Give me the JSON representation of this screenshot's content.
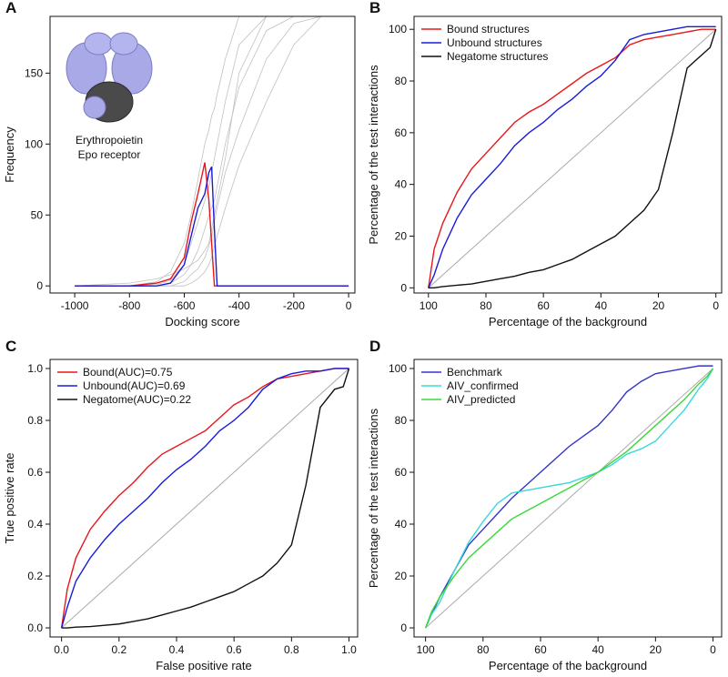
{
  "chart_data": [
    {
      "type": "line",
      "panel": "A",
      "xlabel": "Docking score",
      "ylabel": "Frequency",
      "annotations": [
        "Erythropoietin",
        "Epo receptor"
      ],
      "x": [
        -1000,
        -800,
        -700,
        -650,
        -600,
        -575,
        -550,
        -525,
        -510,
        -500,
        -490,
        -480,
        -450,
        -400,
        -300,
        -200,
        -100,
        0
      ],
      "series": [
        {
          "color": "#c0c0c0",
          "values": [
            0,
            2,
            5,
            8,
            12,
            15,
            18,
            25,
            30,
            40,
            50,
            60,
            90,
            150,
            190,
            190,
            190,
            190
          ]
        },
        {
          "color": "#c0c0c0",
          "values": [
            0,
            0,
            3,
            10,
            30,
            50,
            75,
            100,
            110,
            120,
            125,
            135,
            160,
            190,
            190,
            190,
            190,
            190
          ]
        },
        {
          "color": "#c0c0c0",
          "values": [
            0,
            0,
            1,
            4,
            15,
            30,
            45,
            60,
            70,
            80,
            90,
            100,
            130,
            170,
            190,
            190,
            190,
            190
          ]
        },
        {
          "color": "#c0c0c0",
          "values": [
            0,
            0,
            0,
            2,
            8,
            15,
            25,
            40,
            50,
            55,
            60,
            70,
            100,
            140,
            180,
            190,
            190,
            190
          ]
        },
        {
          "color": "#c0c0c0",
          "values": [
            0,
            0,
            0,
            0,
            3,
            8,
            12,
            20,
            28,
            35,
            45,
            55,
            80,
            110,
            160,
            185,
            190,
            190
          ]
        },
        {
          "color": "#c0c0c0",
          "values": [
            0,
            0,
            0,
            0,
            0,
            2,
            5,
            10,
            15,
            20,
            28,
            35,
            55,
            85,
            130,
            170,
            190,
            190
          ]
        },
        {
          "color": "#e8161b",
          "values": [
            0,
            0,
            2,
            5,
            20,
            45,
            65,
            87,
            60,
            30,
            0,
            0,
            0,
            0,
            0,
            0,
            0,
            0
          ]
        },
        {
          "color": "#1a1adb",
          "values": [
            0,
            0,
            0,
            2,
            15,
            35,
            55,
            65,
            80,
            84,
            40,
            0,
            0,
            0,
            0,
            0,
            0,
            0
          ]
        }
      ],
      "xlim": [
        -1090,
        23
      ],
      "ylim": [
        -5,
        190
      ],
      "xticks": [
        -1000,
        -800,
        -600,
        -400,
        -200,
        0
      ],
      "yticks": [
        0,
        50,
        100,
        150
      ]
    },
    {
      "type": "line",
      "panel": "B",
      "xlabel": "Percentage of the background",
      "ylabel": "Percentage of the test interactions",
      "diagonal": true,
      "legend": "top-left",
      "x": [
        100,
        98,
        95,
        90,
        85,
        80,
        75,
        70,
        65,
        60,
        55,
        50,
        45,
        40,
        35,
        30,
        25,
        20,
        15,
        10,
        5,
        2,
        0
      ],
      "series": [
        {
          "name": "Bound structures",
          "color": "#e8161b",
          "values": [
            0,
            15,
            25,
            37,
            46,
            52,
            58,
            64,
            68,
            71,
            75,
            79,
            83,
            86,
            89,
            94,
            96,
            97,
            98,
            99,
            100,
            100,
            100
          ]
        },
        {
          "name": "Unbound structures",
          "color": "#1a1adb",
          "values": [
            0,
            5,
            15,
            27,
            36,
            42,
            48,
            55,
            60,
            64,
            69,
            73,
            78,
            82,
            88,
            96,
            98,
            99,
            100,
            101,
            101,
            101,
            101
          ]
        },
        {
          "name": "Negatome structures",
          "color": "#111111",
          "values": [
            0,
            0,
            0.5,
            1,
            1.5,
            2.5,
            3.5,
            4.5,
            6,
            7,
            9,
            11,
            14,
            17,
            20,
            25,
            30,
            38,
            60,
            85,
            90,
            93,
            100
          ]
        }
      ],
      "xlim": [
        105,
        -2
      ],
      "ylim": [
        -2,
        105
      ],
      "xticks": [
        100,
        80,
        60,
        40,
        20,
        0
      ],
      "yticks": [
        0,
        20,
        40,
        60,
        80,
        100
      ]
    },
    {
      "type": "line",
      "panel": "C",
      "xlabel": "False positive rate",
      "ylabel": "True positive rate",
      "diagonal": true,
      "legend": "top-left",
      "x": [
        0,
        0.02,
        0.05,
        0.1,
        0.15,
        0.2,
        0.25,
        0.3,
        0.35,
        0.4,
        0.45,
        0.5,
        0.55,
        0.6,
        0.65,
        0.7,
        0.75,
        0.8,
        0.85,
        0.9,
        0.95,
        0.98,
        1
      ],
      "series": [
        {
          "name": "Bound(AUC)=0.75",
          "color": "#e8161b",
          "values": [
            0,
            0.15,
            0.27,
            0.38,
            0.45,
            0.51,
            0.56,
            0.62,
            0.67,
            0.7,
            0.73,
            0.76,
            0.81,
            0.86,
            0.89,
            0.93,
            0.96,
            0.97,
            0.98,
            0.99,
            1,
            1,
            1
          ]
        },
        {
          "name": "Unbound(AUC)=0.69",
          "color": "#1a1adb",
          "values": [
            0,
            0.08,
            0.18,
            0.27,
            0.34,
            0.4,
            0.45,
            0.5,
            0.56,
            0.61,
            0.65,
            0.7,
            0.76,
            0.8,
            0.85,
            0.92,
            0.96,
            0.98,
            0.99,
            0.99,
            1,
            1,
            1
          ]
        },
        {
          "name": "Negatome(AUC)=0.22",
          "color": "#111111",
          "values": [
            0,
            0,
            0.003,
            0.005,
            0.01,
            0.015,
            0.025,
            0.035,
            0.05,
            0.065,
            0.08,
            0.1,
            0.12,
            0.14,
            0.17,
            0.2,
            0.25,
            0.32,
            0.55,
            0.85,
            0.92,
            0.93,
            1
          ]
        }
      ],
      "xlim": [
        -0.04,
        1.03
      ],
      "ylim": [
        -0.035,
        1.035
      ],
      "xticks": [
        {
          "value": 0,
          "label": "0.0"
        },
        0.2,
        0.4,
        0.6,
        0.8,
        {
          "value": 1,
          "label": "1.0"
        }
      ],
      "yticks": [
        {
          "value": 0,
          "label": "0.0"
        },
        0.2,
        0.4,
        0.6,
        0.8,
        {
          "value": 1,
          "label": "1.0"
        }
      ]
    },
    {
      "type": "line",
      "panel": "D",
      "xlabel": "Percentage of the background",
      "ylabel": "Percentage of the test interactions",
      "diagonal": true,
      "legend": "top-left",
      "x": [
        100,
        98,
        95,
        90,
        85,
        80,
        75,
        70,
        65,
        60,
        55,
        50,
        45,
        40,
        35,
        30,
        25,
        20,
        15,
        10,
        5,
        2,
        0
      ],
      "series": [
        {
          "name": "Benchmark",
          "color": "#3434c8",
          "values": [
            0,
            5,
            12,
            22,
            32,
            38,
            44,
            50,
            55,
            60,
            65,
            70,
            74,
            78,
            84,
            91,
            95,
            98,
            99,
            100,
            101,
            101,
            101
          ]
        },
        {
          "name": "AIV_confirmed",
          "color": "#3ad8dc",
          "values": [
            0,
            5,
            10,
            22,
            33,
            41,
            48,
            52,
            53,
            54,
            55,
            56,
            58,
            60,
            63,
            67,
            69,
            72,
            78,
            84,
            92,
            96,
            100
          ]
        },
        {
          "name": "AIV_predicted",
          "color": "#3ad83a",
          "values": [
            0,
            6,
            12,
            20,
            27,
            32,
            37,
            42,
            45,
            48,
            51,
            54,
            57,
            60,
            64,
            68,
            73,
            78,
            83,
            88,
            94,
            97,
            100
          ]
        }
      ],
      "xlim": [
        104,
        -3
      ],
      "ylim": [
        -3.5,
        103.5
      ],
      "xticks": [
        100,
        80,
        60,
        40,
        20,
        0
      ],
      "yticks": [
        0,
        20,
        40,
        60,
        80,
        100
      ]
    }
  ]
}
